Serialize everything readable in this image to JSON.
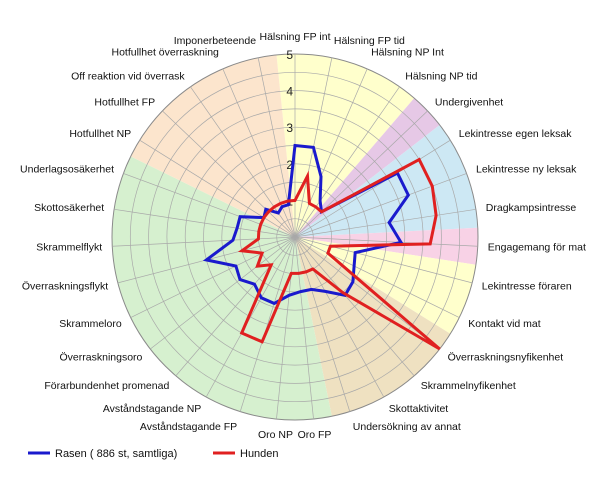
{
  "chart_data": {
    "type": "radar",
    "title": "",
    "scale": {
      "min": 0,
      "max": 5,
      "ticks": [
        "1",
        "2",
        "3",
        "4",
        "5"
      ]
    },
    "grid": true,
    "legend_position": "bottom-left",
    "axes": [
      "Hälsning FP int",
      "Hälsning FP tid",
      "Hälsning NP Int",
      "Hälsning NP tid",
      "Undergivenhet",
      "Lekintresse egen leksak",
      "Lekintresse ny leksak",
      "Dragkampsintresse",
      "Engagemang för mat",
      "Lekintresse föraren",
      "Kontakt vid mat",
      "Överraskningsnyfikenhet",
      "Skrammelnyfikenhet",
      "Skottaktivitet",
      "Undersökning av annat",
      "Oro FP",
      "Oro NP",
      "Avståndstagande FP",
      "Avståndstagande NP",
      "Förarbundenhet promenad",
      "Överraskningsoro",
      "Skrammeloro",
      "Överraskningsflykt",
      "Skrammelflykt",
      "Skottosäkerhet",
      "Underlagsosäkerhet",
      "Hotfullhet NP",
      "Hotfullhet FP",
      "Off reaktion vid överrask",
      "Hotfullhet överraskning",
      "Imponerbeteende"
    ],
    "sectors": [
      {
        "from": 0,
        "to": 3,
        "color": "#ffffcc"
      },
      {
        "from": 4,
        "to": 4,
        "color": "#e6c8e6"
      },
      {
        "from": 5,
        "to": 7,
        "color": "#cde8f4"
      },
      {
        "from": 8,
        "to": 8,
        "color": "#f8d2e6"
      },
      {
        "from": 9,
        "to": 10,
        "color": "#ffffcc"
      },
      {
        "from": 11,
        "to": 14,
        "color": "#efe1c1"
      },
      {
        "from": 15,
        "to": 25,
        "color": "#d6f0cf"
      },
      {
        "from": 26,
        "to": 30,
        "color": "#fce5cd"
      }
    ],
    "series": [
      {
        "name": "Rasen ( 886 st, samtliga)",
        "color": "#1a1acd",
        "values": [
          2.5,
          2.5,
          1.8,
          1.2,
          1.0,
          3.3,
          3.3,
          2.6,
          2.9,
          1.7,
          1.8,
          2.0,
          2.1,
          1.7,
          1.5,
          1.5,
          1.6,
          1.9,
          1.9,
          1.7,
          1.9,
          1.8,
          2.5,
          1.7,
          1.6,
          1.6,
          1.0,
          1.1,
          0.8,
          0.9,
          0.9
        ]
      },
      {
        "name": "Hunden",
        "color": "#e02020",
        "values": [
          1.0,
          1.7,
          1.0,
          1.0,
          1.0,
          4.0,
          4.0,
          3.9,
          3.7,
          1.0,
          1.0,
          5.0,
          2.0,
          1.0,
          1.0,
          1.0,
          1.0,
          3.0,
          3.0,
          1.0,
          1.3,
          1.0,
          1.5,
          1.0,
          1.0,
          1.0,
          1.0,
          1.0,
          1.0,
          1.0,
          1.0
        ]
      }
    ]
  }
}
